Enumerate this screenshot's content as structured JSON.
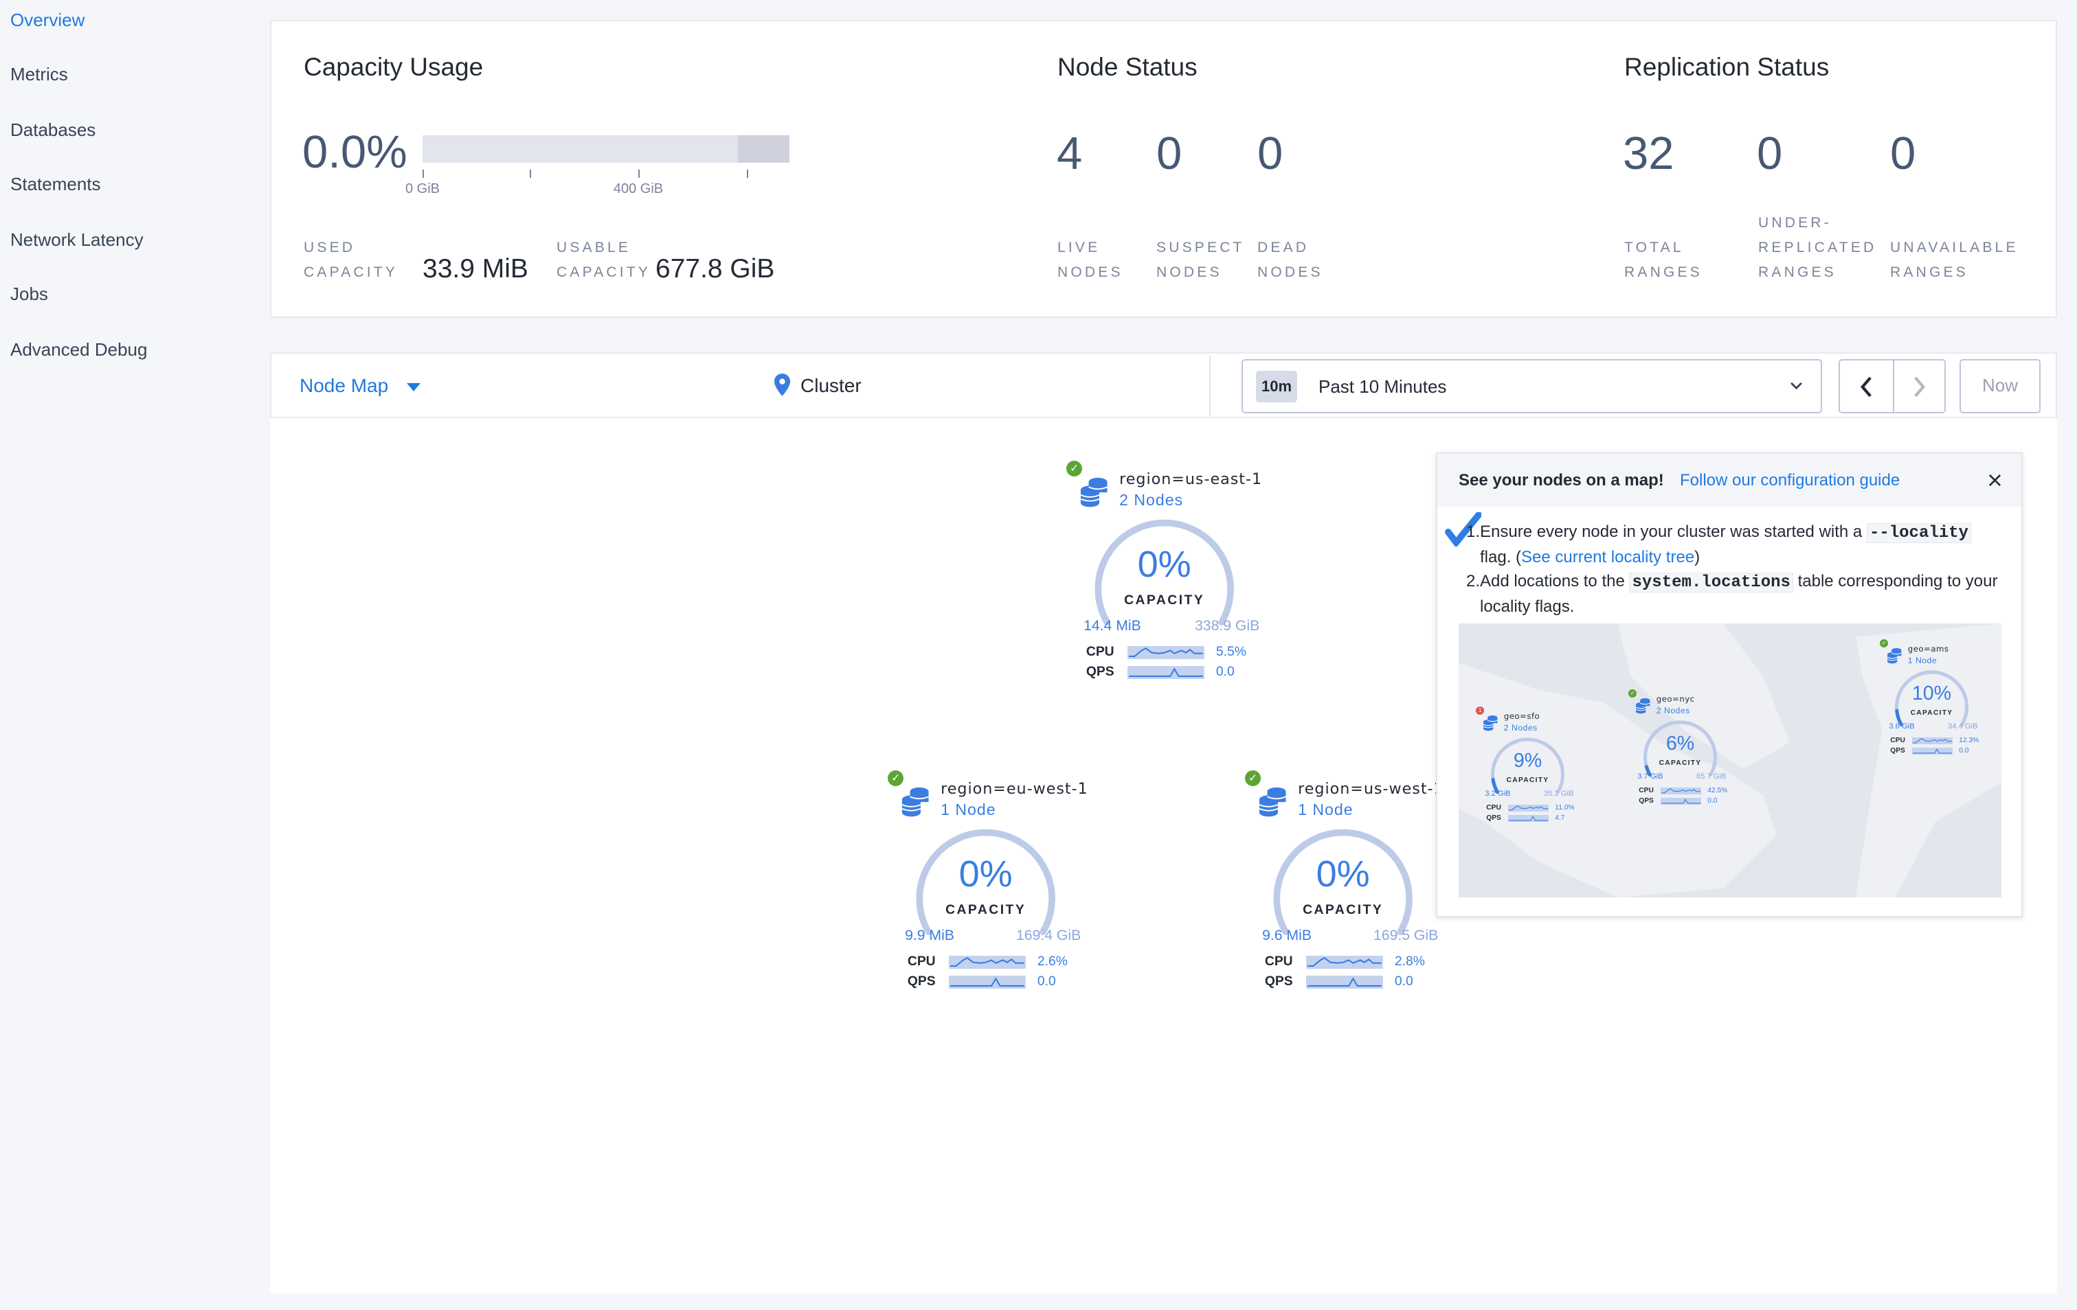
{
  "sidebar": {
    "items": [
      {
        "label": "Overview",
        "active": true
      },
      {
        "label": "Metrics"
      },
      {
        "label": "Databases"
      },
      {
        "label": "Statements"
      },
      {
        "label": "Network Latency"
      },
      {
        "label": "Jobs"
      },
      {
        "label": "Advanced Debug"
      }
    ]
  },
  "capacity": {
    "title": "Capacity Usage",
    "percent": "0.0%",
    "bar_used_fraction": 0.0,
    "bar_usable_fraction": 0.86,
    "ticks": [
      "0 GiB",
      "400 GiB"
    ],
    "used_label_1": "USED",
    "used_label_2": "CAPACITY",
    "used_value": "33.9 MiB",
    "usable_label_1": "USABLE",
    "usable_label_2": "CAPACITY",
    "usable_value": "677.8 GiB"
  },
  "node_status": {
    "title": "Node Status",
    "items": [
      {
        "value": "4",
        "l1": "LIVE",
        "l2": "NODES"
      },
      {
        "value": "0",
        "l1": "SUSPECT",
        "l2": "NODES"
      },
      {
        "value": "0",
        "l1": "DEAD",
        "l2": "NODES"
      }
    ]
  },
  "replication": {
    "title": "Replication Status",
    "items": [
      {
        "value": "32",
        "l0": "",
        "l1": "TOTAL",
        "l2": "RANGES"
      },
      {
        "value": "0",
        "l0": "UNDER-",
        "l1": "REPLICATED",
        "l2": "RANGES"
      },
      {
        "value": "0",
        "l0": "",
        "l1": "UNAVAILABLE",
        "l2": "RANGES"
      }
    ]
  },
  "toolbar": {
    "view_select": "Node Map",
    "breadcrumb": "Cluster",
    "time_badge": "10m",
    "time_label": "Past 10 Minutes",
    "now_label": "Now"
  },
  "colors": {
    "accent": "#3a7de1",
    "link": "#1f7ae0",
    "healthy": "#5ca534",
    "warning": "#e05252"
  },
  "nodes": [
    {
      "title": "region=us-east-1",
      "count": "2 Nodes",
      "percent": "0%",
      "capacity_label": "CAPACITY",
      "used": "14.4 MiB",
      "total": "338.9 GiB",
      "cpu": "5.5%",
      "qps": "0.0",
      "status": "healthy"
    },
    {
      "title": "region=eu-west-1",
      "count": "1 Node",
      "percent": "0%",
      "capacity_label": "CAPACITY",
      "used": "9.9 MiB",
      "total": "169.4 GiB",
      "cpu": "2.6%",
      "qps": "0.0",
      "status": "healthy"
    },
    {
      "title": "region=us-west-1",
      "count": "1 Node",
      "percent": "0%",
      "capacity_label": "CAPACITY",
      "used": "9.6 MiB",
      "total": "169.5 GiB",
      "cpu": "2.8%",
      "qps": "0.0",
      "status": "healthy"
    }
  ],
  "popup": {
    "title": "See your nodes on a map!",
    "link": "Follow our configuration guide",
    "step1_a": "Ensure every node in your cluster was started with a",
    "step1_code": "--locality",
    "step1_b": "flag. (",
    "step1_link": "See current locality tree",
    "step1_c": ")",
    "step2_a": "Add locations to the",
    "step2_code": "system.locations",
    "step2_b": "table corresponding to your locality flags.",
    "map_nodes": [
      {
        "title": "geo=sfo",
        "count": "2 Nodes",
        "percent": "9%",
        "capacity_label": "CAPACITY",
        "used": "3.2 GiB",
        "total": "35.1 GiB",
        "cpu": "11.0%",
        "qps": "4.7",
        "status": "warning",
        "badge": "1",
        "fill": 0.09
      },
      {
        "title": "geo=nyc",
        "count": "2 Nodes",
        "percent": "6%",
        "capacity_label": "CAPACITY",
        "used": "3.7 GiB",
        "total": "65.7 GiB",
        "cpu": "42.5%",
        "qps": "0.0",
        "status": "healthy",
        "fill": 0.06
      },
      {
        "title": "geo=ams",
        "count": "1 Node",
        "percent": "10%",
        "capacity_label": "CAPACITY",
        "used": "3.6 GiB",
        "total": "34.4 GiB",
        "cpu": "12.3%",
        "qps": "0.0",
        "status": "healthy",
        "fill": 0.1
      }
    ]
  }
}
